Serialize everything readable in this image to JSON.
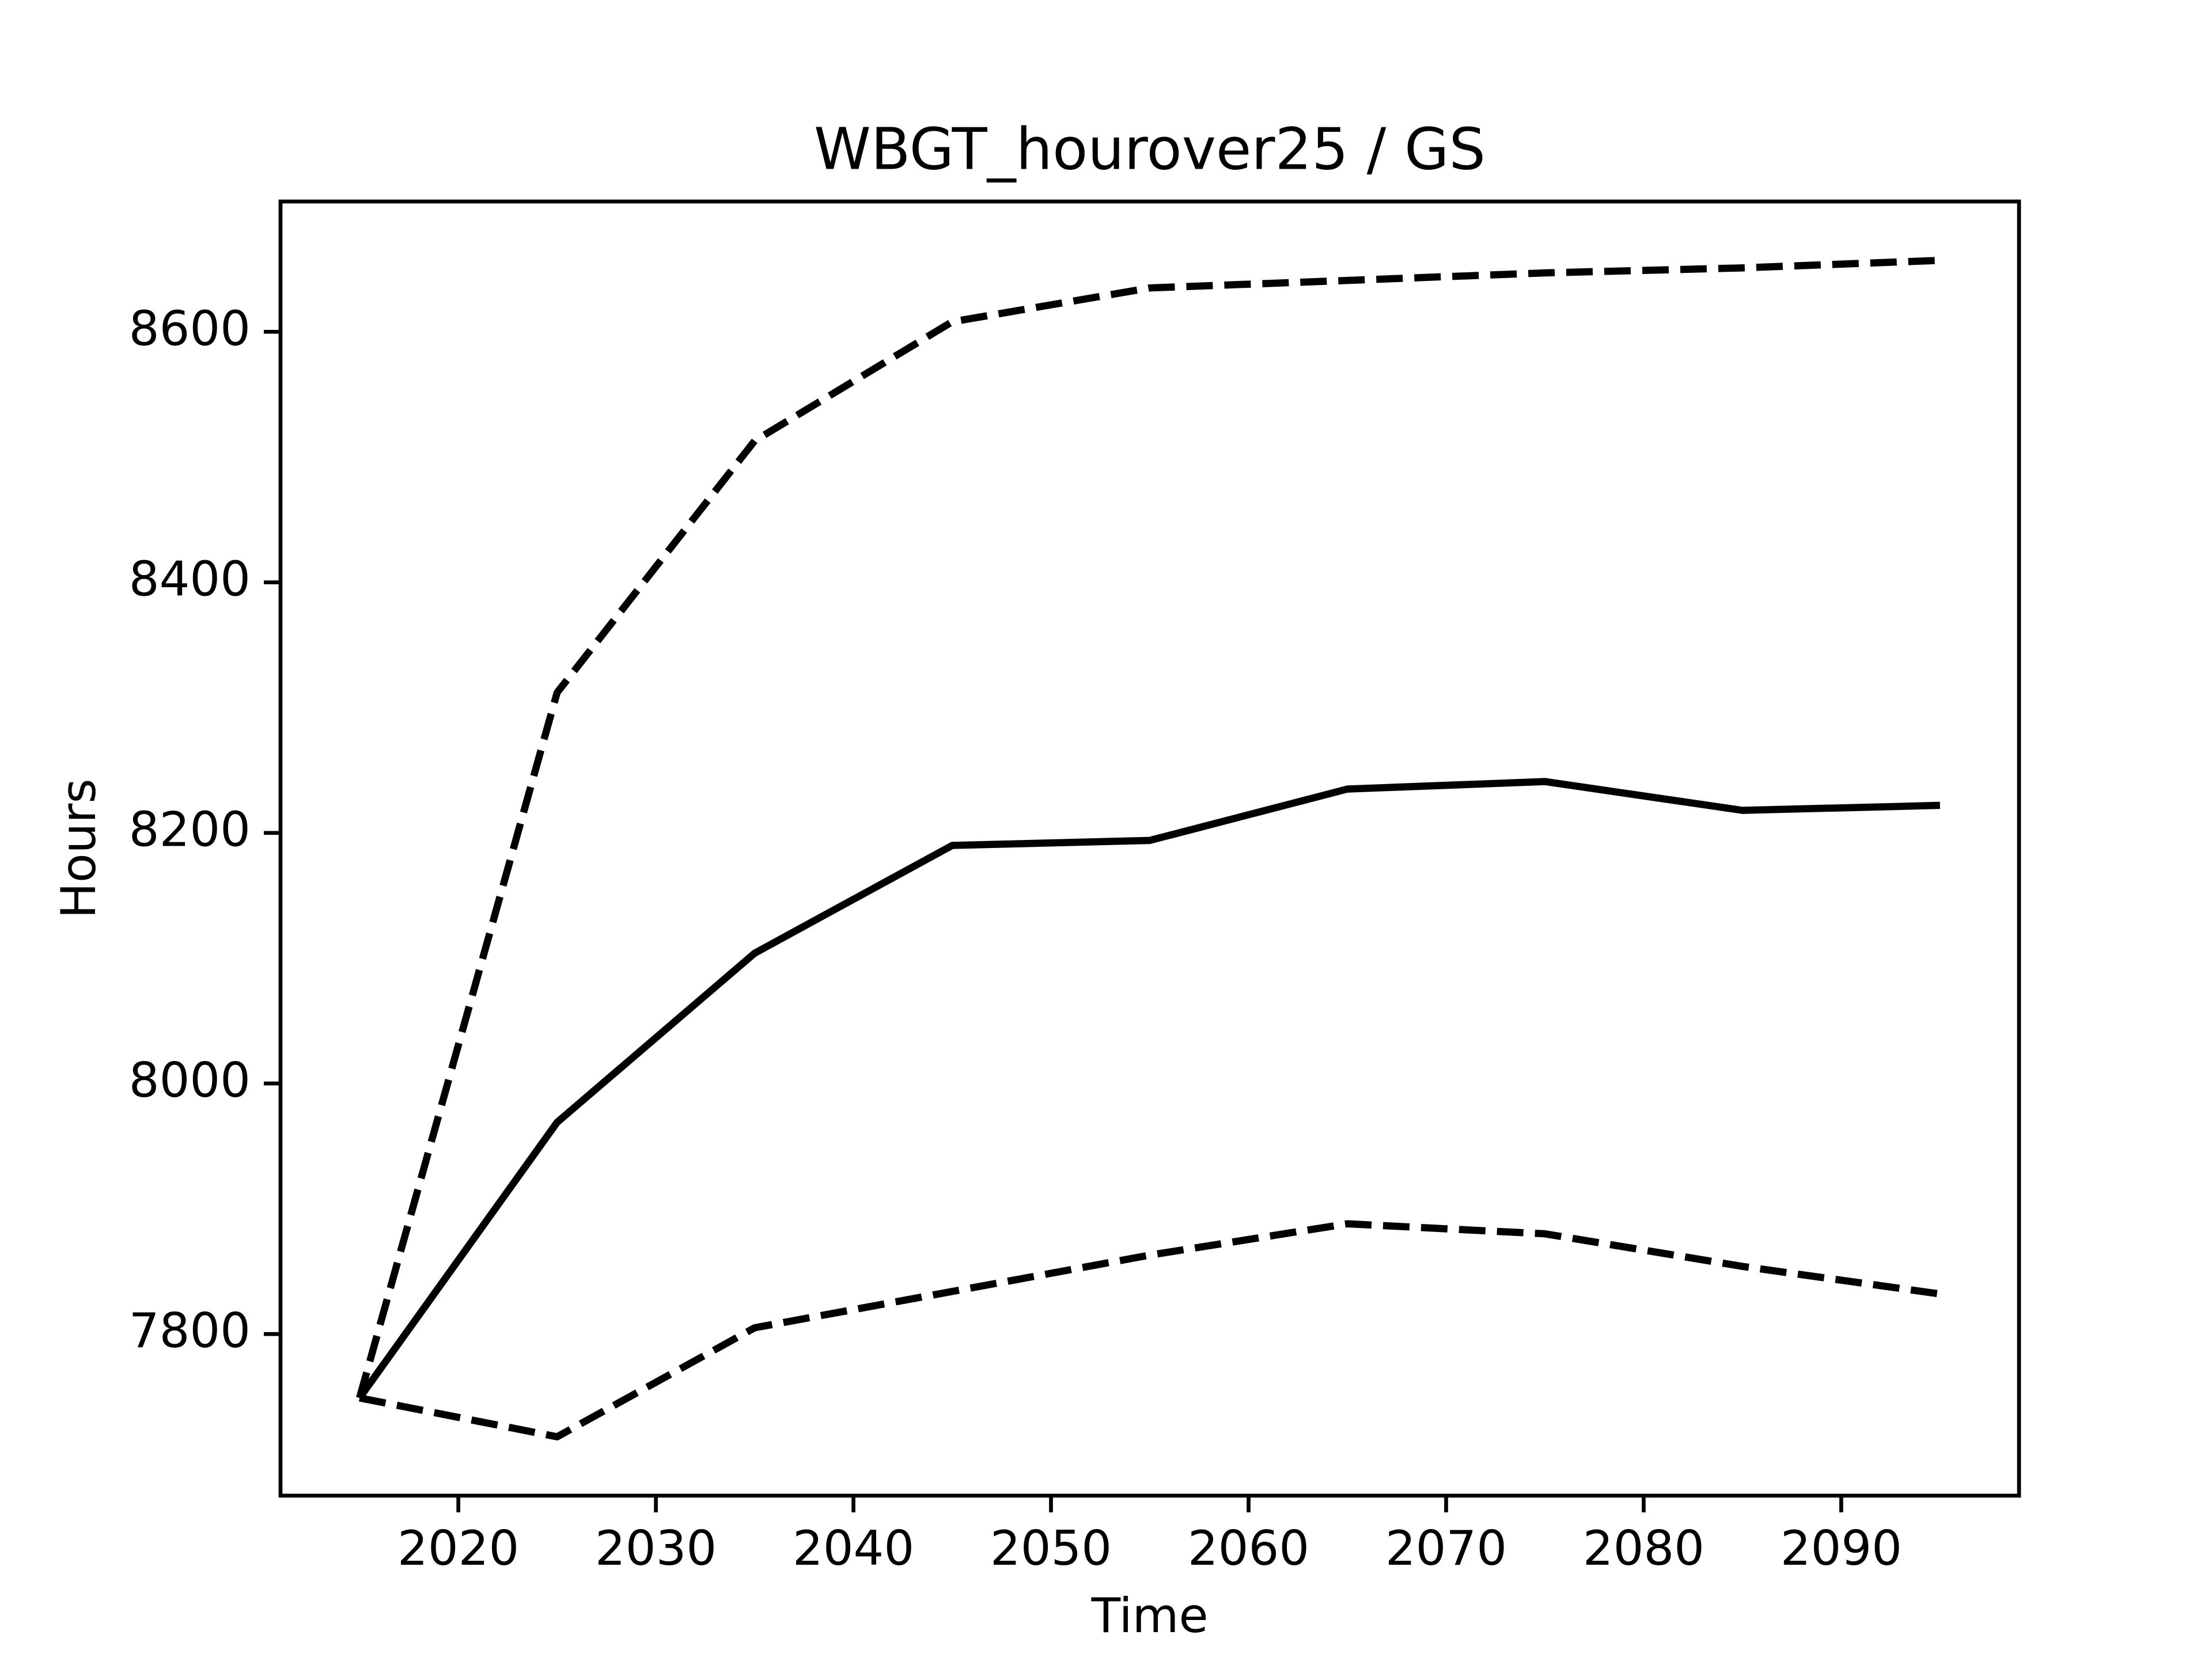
{
  "chart_data": {
    "type": "line",
    "title": "WBGT_hourover25 / GS",
    "xlabel": "Time",
    "ylabel": "Hours",
    "x": [
      2015,
      2025,
      2035,
      2045,
      2055,
      2065,
      2075,
      2085,
      2095
    ],
    "series": [
      {
        "color": "#000000",
        "linestyle": "solid",
        "values": [
          7749,
          7969,
          8104,
          8190,
          8194,
          8235,
          8241,
          8218,
          8222
        ]
      },
      {
        "color": "#000000",
        "linestyle": "dashed",
        "values": [
          7749,
          8312,
          8513,
          8608,
          8635,
          8641,
          8647,
          8651,
          8657
        ]
      },
      {
        "color": "#000000",
        "linestyle": "dashed",
        "values": [
          7749,
          7718,
          7805,
          7834,
          7863,
          7888,
          7880,
          7854,
          7832
        ]
      }
    ],
    "xlim": [
      2011,
      2099
    ],
    "xticks": [
      2020,
      2030,
      2040,
      2050,
      2060,
      2070,
      2080,
      2090
    ],
    "ylim": [
      7671,
      8704
    ],
    "yticks": [
      7800,
      8000,
      8200,
      8400,
      8600
    ],
    "grid": false
  }
}
